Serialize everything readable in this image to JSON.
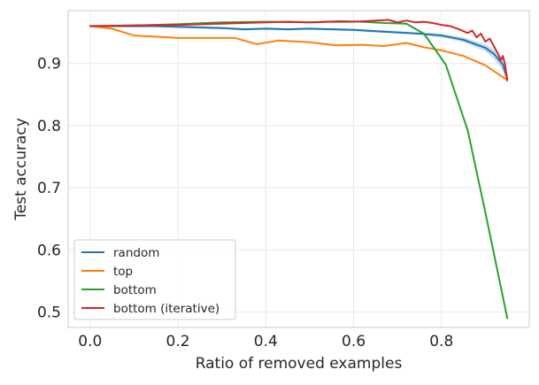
{
  "chart_data": {
    "type": "line",
    "xlabel": "Ratio of removed examples",
    "ylabel": "Test accuracy",
    "xlim": [
      -0.05,
      1.0
    ],
    "ylim": [
      0.475,
      0.985
    ],
    "xticks": [
      "0.0",
      "0.2",
      "0.4",
      "0.6",
      "0.8"
    ],
    "xtick_values": [
      0.0,
      0.2,
      0.4,
      0.6,
      0.8
    ],
    "yticks": [
      "0.5",
      "0.6",
      "0.7",
      "0.8",
      "0.9"
    ],
    "ytick_values": [
      0.5,
      0.6,
      0.7,
      0.8,
      0.9
    ],
    "grid": true,
    "legend_position": "lower-left",
    "series": [
      {
        "name": "random",
        "color": "#1f77b4",
        "x": [
          0.0,
          0.05,
          0.1,
          0.15,
          0.2,
          0.25,
          0.3,
          0.35,
          0.4,
          0.45,
          0.5,
          0.55,
          0.6,
          0.65,
          0.7,
          0.75,
          0.8,
          0.85,
          0.9,
          0.92,
          0.94,
          0.95
        ],
        "y": [
          0.96,
          0.96,
          0.96,
          0.96,
          0.959,
          0.958,
          0.957,
          0.955,
          0.956,
          0.955,
          0.956,
          0.955,
          0.954,
          0.952,
          0.95,
          0.948,
          0.945,
          0.938,
          0.925,
          0.915,
          0.898,
          0.875
        ],
        "band_lower": [
          0.958,
          0.958,
          0.958,
          0.958,
          0.957,
          0.956,
          0.955,
          0.953,
          0.954,
          0.953,
          0.954,
          0.953,
          0.952,
          0.95,
          0.948,
          0.946,
          0.942,
          0.934,
          0.919,
          0.907,
          0.888,
          0.866
        ],
        "band_upper": [
          0.962,
          0.962,
          0.962,
          0.962,
          0.961,
          0.96,
          0.959,
          0.957,
          0.958,
          0.957,
          0.958,
          0.957,
          0.956,
          0.954,
          0.952,
          0.95,
          0.948,
          0.942,
          0.931,
          0.923,
          0.908,
          0.884
        ]
      },
      {
        "name": "top",
        "color": "#ff7f0e",
        "x": [
          0.0,
          0.05,
          0.1,
          0.2,
          0.25,
          0.33,
          0.38,
          0.43,
          0.5,
          0.56,
          0.62,
          0.67,
          0.72,
          0.76,
          0.8,
          0.85,
          0.9,
          0.95
        ],
        "y": [
          0.96,
          0.956,
          0.945,
          0.941,
          0.941,
          0.941,
          0.931,
          0.937,
          0.934,
          0.929,
          0.93,
          0.928,
          0.933,
          0.926,
          0.921,
          0.912,
          0.897,
          0.873
        ]
      },
      {
        "name": "bottom",
        "color": "#2ca02c",
        "x": [
          0.0,
          0.1,
          0.2,
          0.3,
          0.4,
          0.5,
          0.57,
          0.62,
          0.67,
          0.72,
          0.76,
          0.81,
          0.86,
          0.9,
          0.95
        ],
        "y": [
          0.96,
          0.961,
          0.963,
          0.966,
          0.967,
          0.966,
          0.968,
          0.967,
          0.965,
          0.964,
          0.948,
          0.898,
          0.792,
          0.66,
          0.49
        ]
      },
      {
        "name": "bottom (iterative)",
        "color": "#d62728",
        "x": [
          0.0,
          0.1,
          0.2,
          0.3,
          0.4,
          0.45,
          0.5,
          0.55,
          0.6,
          0.65,
          0.68,
          0.7,
          0.72,
          0.74,
          0.76,
          0.78,
          0.8,
          0.82,
          0.84,
          0.86,
          0.87,
          0.88,
          0.89,
          0.9,
          0.91,
          0.92,
          0.93,
          0.935,
          0.94,
          0.945,
          0.95
        ],
        "y": [
          0.96,
          0.961,
          0.962,
          0.964,
          0.966,
          0.967,
          0.966,
          0.967,
          0.967,
          0.969,
          0.97,
          0.966,
          0.969,
          0.966,
          0.967,
          0.965,
          0.962,
          0.96,
          0.955,
          0.949,
          0.953,
          0.942,
          0.948,
          0.935,
          0.94,
          0.927,
          0.914,
          0.905,
          0.912,
          0.898,
          0.873
        ]
      }
    ]
  }
}
